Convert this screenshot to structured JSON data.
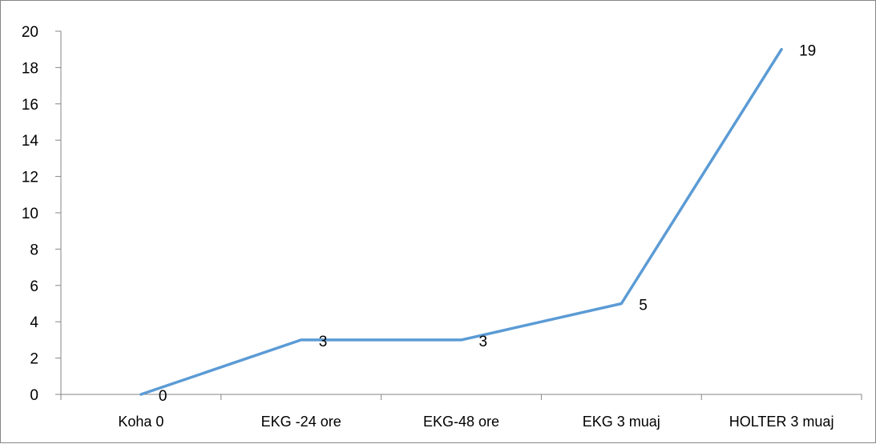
{
  "chart_data": {
    "type": "line",
    "categories": [
      "Koha 0",
      "EKG -24 ore",
      "EKG-48 ore",
      "EKG 3 muaj",
      "HOLTER 3 muaj"
    ],
    "series": [
      {
        "values": [
          0,
          3,
          3,
          5,
          19
        ],
        "color": "#5b9bd5"
      }
    ],
    "data_labels": [
      "0",
      "3",
      "3",
      "5",
      "19"
    ],
    "y_ticks": [
      "0",
      "2",
      "4",
      "6",
      "8",
      "10",
      "12",
      "14",
      "16",
      "18",
      "20"
    ],
    "ylim": [
      0,
      20
    ],
    "grid": false,
    "legend": "none"
  }
}
